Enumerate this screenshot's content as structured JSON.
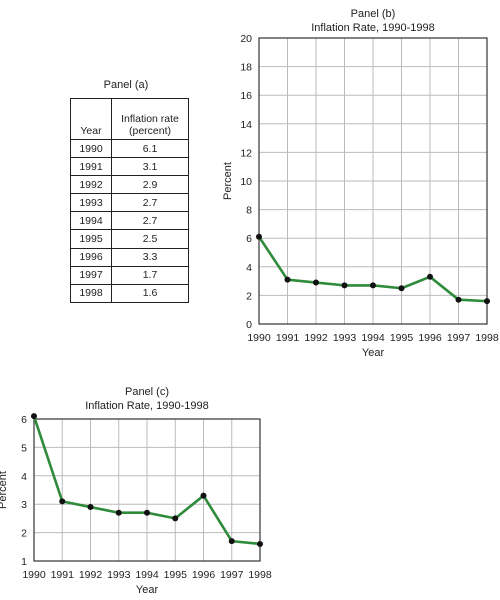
{
  "panel_a": {
    "title": "Panel (a)",
    "header_year": "Year",
    "header_rate_line1": "Inflation rate",
    "header_rate_line2": "(percent)",
    "rows": [
      {
        "year": "1990",
        "rate": "6.1"
      },
      {
        "year": "1991",
        "rate": "3.1"
      },
      {
        "year": "1992",
        "rate": "2.9"
      },
      {
        "year": "1993",
        "rate": "2.7"
      },
      {
        "year": "1994",
        "rate": "2.7"
      },
      {
        "year": "1995",
        "rate": "2.5"
      },
      {
        "year": "1996",
        "rate": "3.3"
      },
      {
        "year": "1997",
        "rate": "1.7"
      },
      {
        "year": "1998",
        "rate": "1.6"
      }
    ]
  },
  "colors": {
    "line": "#2e8b3a",
    "point": "#111111",
    "grid": "#bbbbbb",
    "axis": "#333333"
  },
  "chart_data": [
    {
      "type": "line",
      "panel": "Panel (b)",
      "title": "Inflation Rate, 1990-1998",
      "xlabel": "Year",
      "ylabel": "Percent",
      "x": [
        1990,
        1991,
        1992,
        1993,
        1994,
        1995,
        1996,
        1997,
        1998
      ],
      "values": [
        6.1,
        3.1,
        2.9,
        2.7,
        2.7,
        2.5,
        3.3,
        1.7,
        1.6
      ],
      "ylim": [
        0,
        20
      ],
      "yticks": [
        0,
        2,
        4,
        6,
        8,
        10,
        12,
        14,
        16,
        18,
        20
      ],
      "grid": true
    },
    {
      "type": "line",
      "panel": "Panel (c)",
      "title": "Inflation Rate, 1990-1998",
      "xlabel": "Year",
      "ylabel": "Percent",
      "x": [
        1990,
        1991,
        1992,
        1993,
        1994,
        1995,
        1996,
        1997,
        1998
      ],
      "values": [
        6.1,
        3.1,
        2.9,
        2.7,
        2.7,
        2.5,
        3.3,
        1.7,
        1.6
      ],
      "ylim": [
        1,
        6
      ],
      "yticks": [
        1,
        2,
        3,
        4,
        5,
        6
      ],
      "grid": true
    }
  ]
}
